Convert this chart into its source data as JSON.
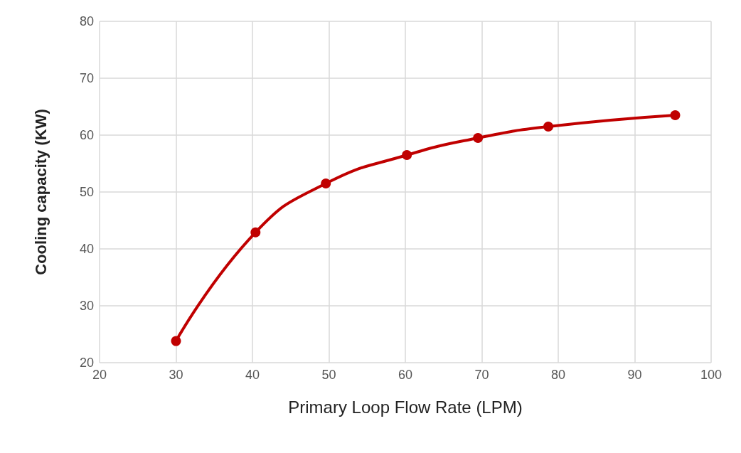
{
  "chart_data": {
    "type": "line",
    "xlabel": "Primary Loop Flow Rate (LPM)",
    "ylabel": "Cooling capacity (KW)",
    "x": [
      30,
      40.4,
      49.6,
      60.2,
      69.5,
      78.7,
      95.3
    ],
    "series": [
      {
        "color": "#c00000",
        "values": [
          23.8,
          42.9,
          51.5,
          56.5,
          59.5,
          61.5,
          63.5
        ]
      }
    ],
    "xlim": [
      20,
      100
    ],
    "xticks": [
      20,
      30,
      40,
      50,
      60,
      70,
      80,
      90,
      100
    ],
    "ylim": [
      20,
      80
    ],
    "yticks": [
      20,
      30,
      40,
      50,
      60,
      70,
      80
    ],
    "grid": true,
    "marker": "circle",
    "line_style": "solid"
  }
}
